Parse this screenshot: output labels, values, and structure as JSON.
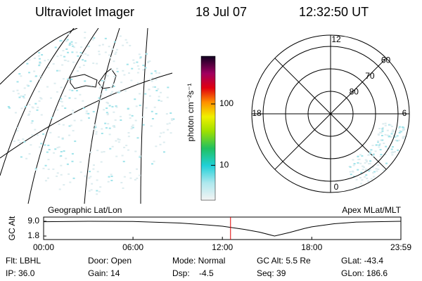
{
  "header": {
    "title": "Ultraviolet Imager",
    "date": "18 Jul 07",
    "time": "12:32:50 UT"
  },
  "geo_panel": {
    "label": "Geographic Lat/Lon"
  },
  "colorbar": {
    "label": "photon cm⁻²s⁻¹",
    "scale": "log",
    "lim": [
      2.7,
      600
    ],
    "ticks": [
      10,
      100
    ]
  },
  "polar_panel": {
    "label": "Apex MLat/MLT",
    "rlim": [
      90,
      55
    ],
    "lat_ticks": [
      80,
      70,
      60
    ],
    "mlt_ticks": [
      12,
      18,
      6,
      0
    ]
  },
  "timeline": {
    "ylabel": "GC Alt",
    "ylim": [
      1.8,
      9.0
    ],
    "yticks": [
      {
        "value": 9,
        "label": "9.0"
      },
      1.8
    ],
    "xlim": [
      0,
      23.983
    ],
    "xticks": [
      {
        "value": 0,
        "label": "00:00"
      },
      {
        "value": 6,
        "label": "06:00"
      },
      {
        "value": 12,
        "label": "12:00"
      },
      {
        "value": 18,
        "label": "18:00"
      },
      {
        "value": 23.983,
        "label": "23:59"
      }
    ],
    "hours": [
      0,
      3,
      6,
      9,
      11,
      12,
      13.5,
      14.5,
      15.5,
      16.5,
      17.5,
      18,
      19.5,
      21,
      23.983
    ],
    "altitude": [
      8.8,
      9.0,
      8.9,
      8.2,
      7.2,
      6.6,
      5.0,
      3.7,
      1.8,
      3.5,
      5.5,
      6.3,
      7.8,
      8.6,
      9.0
    ],
    "marker": 12.547,
    "marker_color": "#e00000"
  },
  "status": [
    [
      "Flt: LBHL",
      "Door: Open",
      "Mode: Normal",
      "GC Alt: 5.5 Re",
      "GLat: -43.4"
    ],
    [
      "IP: 36.0",
      "Gain: 14",
      "Dsp:    -4.5",
      "Seq: 39",
      "GLon: 186.6"
    ]
  ]
}
